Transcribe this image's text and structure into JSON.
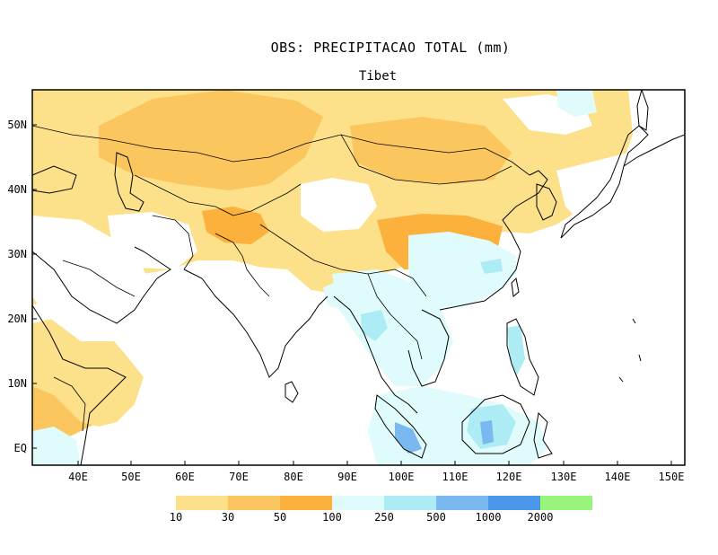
{
  "title": "OBS: PRECIPITACAO TOTAL (mm)",
  "subtitle": "Tibet",
  "axes": {
    "lon_ticks": [
      "40E",
      "50E",
      "60E",
      "70E",
      "80E",
      "90E",
      "100E",
      "110E",
      "120E",
      "130E",
      "140E",
      "150E"
    ],
    "lat_ticks": [
      "50N",
      "40N",
      "30N",
      "20N",
      "10N",
      "EQ"
    ],
    "lon_range": [
      32,
      153
    ],
    "lat_range": [
      -3,
      55
    ]
  },
  "legend": {
    "labels": [
      "10",
      "30",
      "50",
      "100",
      "250",
      "500",
      "1000",
      "2000"
    ],
    "colors": [
      "#fff5a8",
      "#fde08a",
      "#fcc65e",
      "#fbb13c",
      "#e0fbfb",
      "#aeecf5",
      "#7ab8f0",
      "#4b98ea",
      "#97f57b"
    ]
  },
  "colors": {
    "land_outline": "#000000",
    "frame": "#000000"
  }
}
